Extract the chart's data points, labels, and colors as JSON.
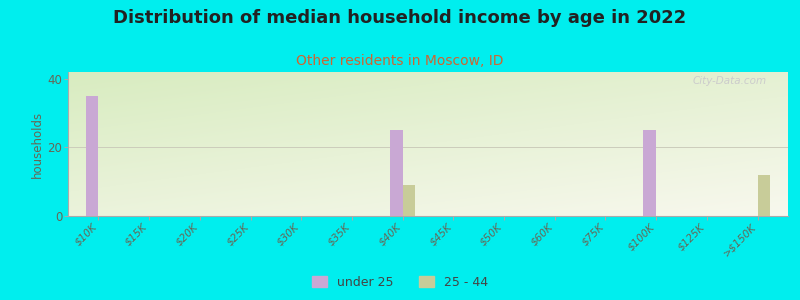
{
  "title": "Distribution of median household income by age in 2022",
  "subtitle": "Other residents in Moscow, ID",
  "ylabel": "households",
  "categories": [
    "$10K",
    "$15K",
    "$20K",
    "$25K",
    "$30K",
    "$35K",
    "$40K",
    "$45K",
    "$50K",
    "$60K",
    "$75K",
    "$100K",
    "$125K",
    ">$150K"
  ],
  "under25": [
    35,
    0,
    0,
    0,
    0,
    0,
    25,
    0,
    0,
    0,
    0,
    25,
    0,
    0
  ],
  "age2544": [
    0,
    0,
    0,
    0,
    0,
    0,
    9,
    0,
    0,
    0,
    0,
    0,
    0,
    12
  ],
  "under25_color": "#c9a8d4",
  "age2544_color": "#c8cc99",
  "ylim": [
    0,
    42
  ],
  "yticks": [
    0,
    20,
    40
  ],
  "outer_bg": "#00EEEE",
  "title_fontsize": 13,
  "subtitle_fontsize": 10,
  "subtitle_color": "#cc6633",
  "watermark": "City-Data.com",
  "bar_width": 0.25
}
